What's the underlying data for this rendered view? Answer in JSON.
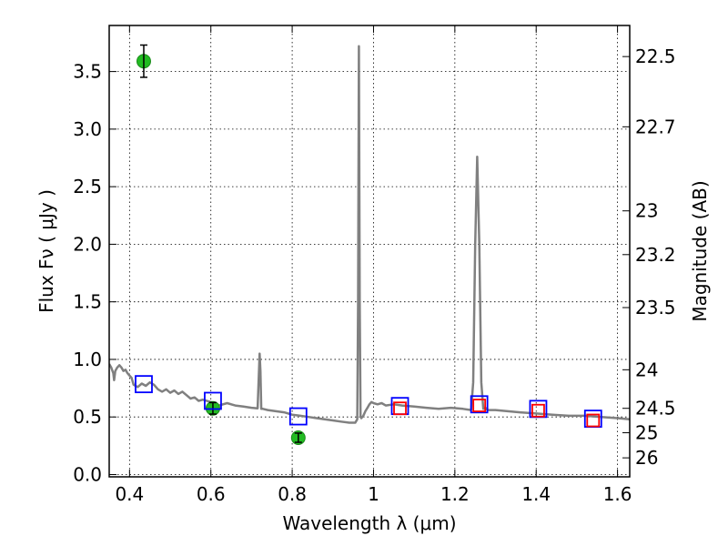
{
  "chart_data": {
    "type": "line",
    "xlabel": "Wavelength  λ (μm)",
    "ylabel": "Flux  Fν  ( μJy )",
    "y2label": "Magnitude (AB)",
    "xlim": [
      0.35,
      1.63
    ],
    "ylim": [
      -0.02,
      3.9
    ],
    "grid": true,
    "x_ticks": [
      0.4,
      0.6,
      0.8,
      1.0,
      1.2,
      1.4,
      1.6
    ],
    "x_tick_labels": [
      "0.4",
      "0.6",
      "0.8",
      "1",
      "1.2",
      "1.4",
      "1.6"
    ],
    "y_ticks": [
      0.0,
      0.5,
      1.0,
      1.5,
      2.0,
      2.5,
      3.0,
      3.5
    ],
    "y_tick_labels": [
      "0.0",
      "0.5",
      "1.0",
      "1.5",
      "2.0",
      "2.5",
      "3.0",
      "3.5"
    ],
    "y2_ticks": [
      {
        "label": "22.5",
        "flux": 3.63
      },
      {
        "label": "22.7",
        "flux": 3.02
      },
      {
        "label": "23",
        "flux": 2.29
      },
      {
        "label": "23.2",
        "flux": 1.91
      },
      {
        "label": "23.5",
        "flux": 1.45
      },
      {
        "label": "24",
        "flux": 0.91
      },
      {
        "label": "24.5",
        "flux": 0.575
      },
      {
        "label": "25",
        "flux": 0.363
      },
      {
        "label": "26",
        "flux": 0.145
      }
    ],
    "series": [
      {
        "style": "line",
        "color": "#808080",
        "x": [
          0.35,
          0.355,
          0.36,
          0.362,
          0.365,
          0.37,
          0.375,
          0.38,
          0.385,
          0.39,
          0.395,
          0.4,
          0.405,
          0.41,
          0.42,
          0.43,
          0.44,
          0.45,
          0.46,
          0.47,
          0.48,
          0.49,
          0.5,
          0.51,
          0.52,
          0.53,
          0.54,
          0.55,
          0.56,
          0.57,
          0.58,
          0.6,
          0.62,
          0.64,
          0.66,
          0.68,
          0.7,
          0.715,
          0.72,
          0.722,
          0.724,
          0.728,
          0.74,
          0.76,
          0.78,
          0.8,
          0.82,
          0.84,
          0.86,
          0.88,
          0.9,
          0.92,
          0.94,
          0.95,
          0.955,
          0.96,
          0.962,
          0.964,
          0.966,
          0.968,
          0.97,
          0.975,
          0.98,
          0.985,
          0.99,
          0.995,
          1.0,
          1.01,
          1.02,
          1.03,
          1.05,
          1.07,
          1.1,
          1.13,
          1.16,
          1.19,
          1.22,
          1.24,
          1.245,
          1.25,
          1.255,
          1.26,
          1.265,
          1.27,
          1.275,
          1.28,
          1.3,
          1.33,
          1.36,
          1.4,
          1.44,
          1.48,
          1.52,
          1.56,
          1.6,
          1.63
        ],
        "y": [
          0.96,
          0.93,
          0.88,
          0.82,
          0.9,
          0.93,
          0.95,
          0.93,
          0.9,
          0.91,
          0.88,
          0.86,
          0.84,
          0.78,
          0.76,
          0.79,
          0.77,
          0.8,
          0.78,
          0.74,
          0.72,
          0.74,
          0.71,
          0.73,
          0.7,
          0.72,
          0.69,
          0.66,
          0.67,
          0.64,
          0.65,
          0.63,
          0.6,
          0.62,
          0.6,
          0.59,
          0.58,
          0.575,
          1.05,
          0.9,
          0.57,
          0.57,
          0.56,
          0.55,
          0.54,
          0.52,
          0.51,
          0.5,
          0.49,
          0.48,
          0.47,
          0.46,
          0.45,
          0.45,
          0.45,
          0.48,
          1.5,
          3.72,
          1.5,
          0.5,
          0.49,
          0.51,
          0.55,
          0.58,
          0.61,
          0.63,
          0.62,
          0.61,
          0.62,
          0.6,
          0.61,
          0.6,
          0.59,
          0.58,
          0.57,
          0.58,
          0.57,
          0.56,
          0.8,
          2.0,
          2.76,
          2.0,
          0.8,
          0.57,
          0.58,
          0.56,
          0.56,
          0.55,
          0.54,
          0.53,
          0.52,
          0.51,
          0.51,
          0.5,
          0.49,
          0.48
        ]
      },
      {
        "style": "marker-circle",
        "color": "#22bb22",
        "x": [
          0.435,
          0.605,
          0.815
        ],
        "y": [
          3.59,
          0.575,
          0.32
        ],
        "yerr": [
          0.14,
          0.05,
          0.04
        ]
      },
      {
        "style": "marker-square-open",
        "color": "#0000ff",
        "x": [
          0.435,
          0.605,
          0.815,
          1.065,
          1.26,
          1.405,
          1.54
        ],
        "y": [
          0.785,
          0.64,
          0.505,
          0.595,
          0.61,
          0.57,
          0.485
        ]
      },
      {
        "style": "marker-square-open",
        "color": "#ff0000",
        "x": [
          1.065,
          1.26,
          1.405,
          1.54
        ],
        "y": [
          0.575,
          0.6,
          0.555,
          0.47
        ]
      }
    ]
  }
}
